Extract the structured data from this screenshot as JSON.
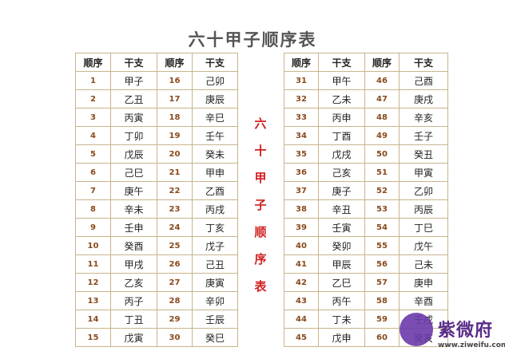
{
  "title": "六十甲子顺序表",
  "headers": [
    "顺序",
    "干支",
    "顺序",
    "干支"
  ],
  "left_rows": [
    [
      "1",
      "甲子",
      "16",
      "己卯"
    ],
    [
      "2",
      "乙丑",
      "17",
      "庚辰"
    ],
    [
      "3",
      "丙寅",
      "18",
      "辛巳"
    ],
    [
      "4",
      "丁卯",
      "19",
      "壬午"
    ],
    [
      "5",
      "戊辰",
      "20",
      "癸未"
    ],
    [
      "6",
      "己巳",
      "21",
      "甲申"
    ],
    [
      "7",
      "庚午",
      "22",
      "乙酉"
    ],
    [
      "8",
      "辛未",
      "23",
      "丙戌"
    ],
    [
      "9",
      "壬申",
      "24",
      "丁亥"
    ],
    [
      "10",
      "癸酉",
      "25",
      "戊子"
    ],
    [
      "11",
      "甲戌",
      "26",
      "己丑"
    ],
    [
      "12",
      "乙亥",
      "27",
      "庚寅"
    ],
    [
      "13",
      "丙子",
      "28",
      "辛卯"
    ],
    [
      "14",
      "丁丑",
      "29",
      "壬辰"
    ],
    [
      "15",
      "戊寅",
      "30",
      "癸巳"
    ]
  ],
  "right_rows": [
    [
      "31",
      "甲午",
      "46",
      "己酉"
    ],
    [
      "32",
      "乙未",
      "47",
      "庚戌"
    ],
    [
      "33",
      "丙申",
      "48",
      "辛亥"
    ],
    [
      "34",
      "丁酉",
      "49",
      "壬子"
    ],
    [
      "35",
      "戊戌",
      "50",
      "癸丑"
    ],
    [
      "36",
      "己亥",
      "51",
      "甲寅"
    ],
    [
      "37",
      "庚子",
      "52",
      "乙卯"
    ],
    [
      "38",
      "辛丑",
      "53",
      "丙辰"
    ],
    [
      "39",
      "壬寅",
      "54",
      "丁巳"
    ],
    [
      "40",
      "癸卯",
      "55",
      "戊午"
    ],
    [
      "41",
      "甲辰",
      "56",
      "己未"
    ],
    [
      "42",
      "乙巳",
      "57",
      "庚申"
    ],
    [
      "43",
      "丙午",
      "58",
      "辛酉"
    ],
    [
      "44",
      "丁未",
      "59",
      "壬戌"
    ],
    [
      "45",
      "戊申",
      "60",
      "癸亥"
    ]
  ],
  "vertical_title": [
    "六",
    "十",
    "甲",
    "子",
    "顺",
    "序",
    "表"
  ],
  "watermark": {
    "name": "紫微府",
    "url": "www.ziweifu.com"
  },
  "colors": {
    "number": "#8a4a1c",
    "vertical_title": "#d02020",
    "border": "#c9b48c"
  }
}
